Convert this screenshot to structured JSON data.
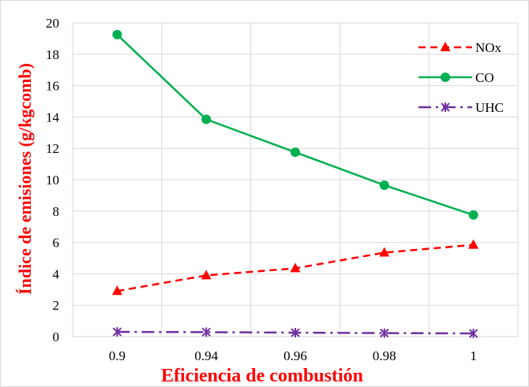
{
  "chart_data": {
    "type": "line",
    "title": "",
    "xlabel": "Eficiencia de combustión",
    "ylabel": "Índice de emisiones  (g/kgcomb)",
    "categories": [
      "0.9",
      "0.94",
      "0.96",
      "0.98",
      "1"
    ],
    "ylim": [
      0,
      20
    ],
    "yticks": [
      "0",
      "2",
      "4",
      "6",
      "8",
      "10",
      "12",
      "14",
      "16",
      "18",
      "20"
    ],
    "grid": true,
    "legend_position": "top-right",
    "series": [
      {
        "name": "NOx",
        "values": [
          2.9,
          3.9,
          4.35,
          5.35,
          5.85
        ],
        "color": "#ff0000",
        "dash": "dashed",
        "marker": "triangle"
      },
      {
        "name": "CO",
        "values": [
          19.25,
          13.85,
          11.75,
          9.65,
          7.75
        ],
        "color": "#00b050",
        "dash": "solid",
        "marker": "circle"
      },
      {
        "name": "UHC",
        "values": [
          0.3,
          0.28,
          0.25,
          0.22,
          0.2
        ],
        "color": "#7030a0",
        "dash": "dash-dot",
        "marker": "star"
      }
    ]
  }
}
